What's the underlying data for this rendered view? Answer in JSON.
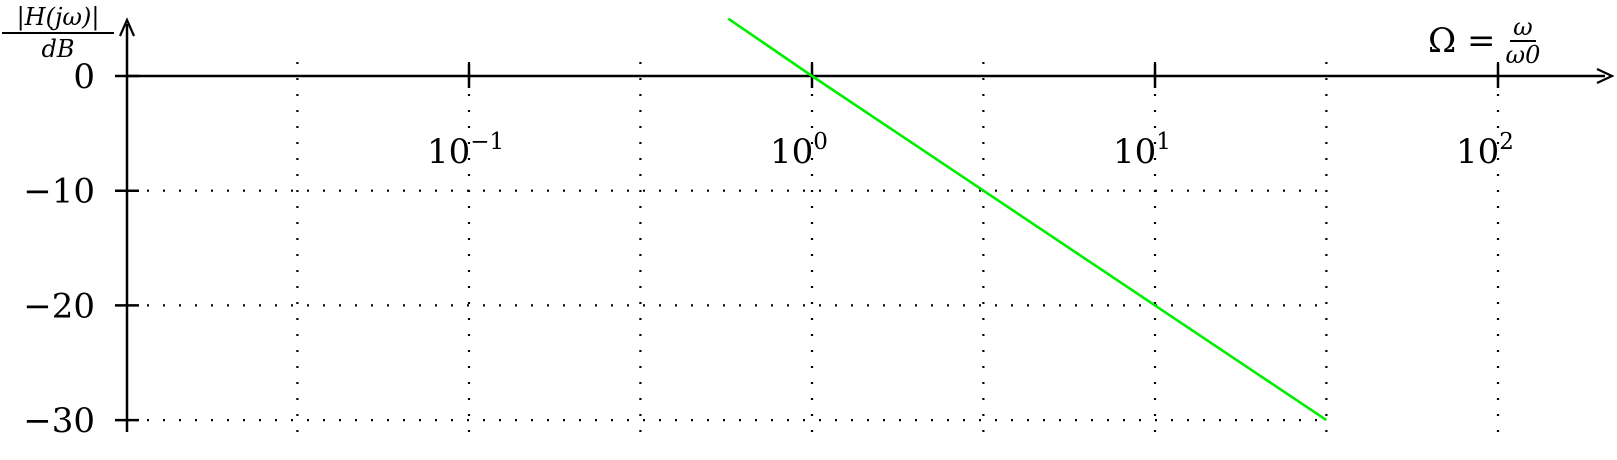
{
  "chart_data": {
    "type": "line",
    "ylabel": "|H(jω)| / dB",
    "ylabel_num": "|H(jω)|",
    "ylabel_den": "dB",
    "xlabel_lhs": "Ω =",
    "xlabel_num": "ω",
    "xlabel_den": "ω0",
    "x_scale": "log",
    "xlim": [
      0.01,
      100
    ],
    "ylim": [
      -30,
      0
    ],
    "x_ticks": [
      {
        "value": 0.1,
        "base": "10",
        "exp": "−1"
      },
      {
        "value": 1,
        "base": "10",
        "exp": "0"
      },
      {
        "value": 10,
        "base": "10",
        "exp": "1"
      },
      {
        "value": 100,
        "base": "10",
        "exp": "2"
      }
    ],
    "x_grid": [
      0.0316,
      0.316,
      3.16,
      31.6
    ],
    "y_ticks": [
      {
        "value": 0,
        "label": "0"
      },
      {
        "value": -10,
        "label": "−10"
      },
      {
        "value": -20,
        "label": "−20"
      },
      {
        "value": -30,
        "label": "−30"
      }
    ],
    "grid": "dotted",
    "series": [
      {
        "color": "#00ee00",
        "x": [
          0.57,
          1,
          10,
          31.6
        ],
        "y": [
          5,
          0,
          -20,
          -30
        ]
      }
    ]
  }
}
